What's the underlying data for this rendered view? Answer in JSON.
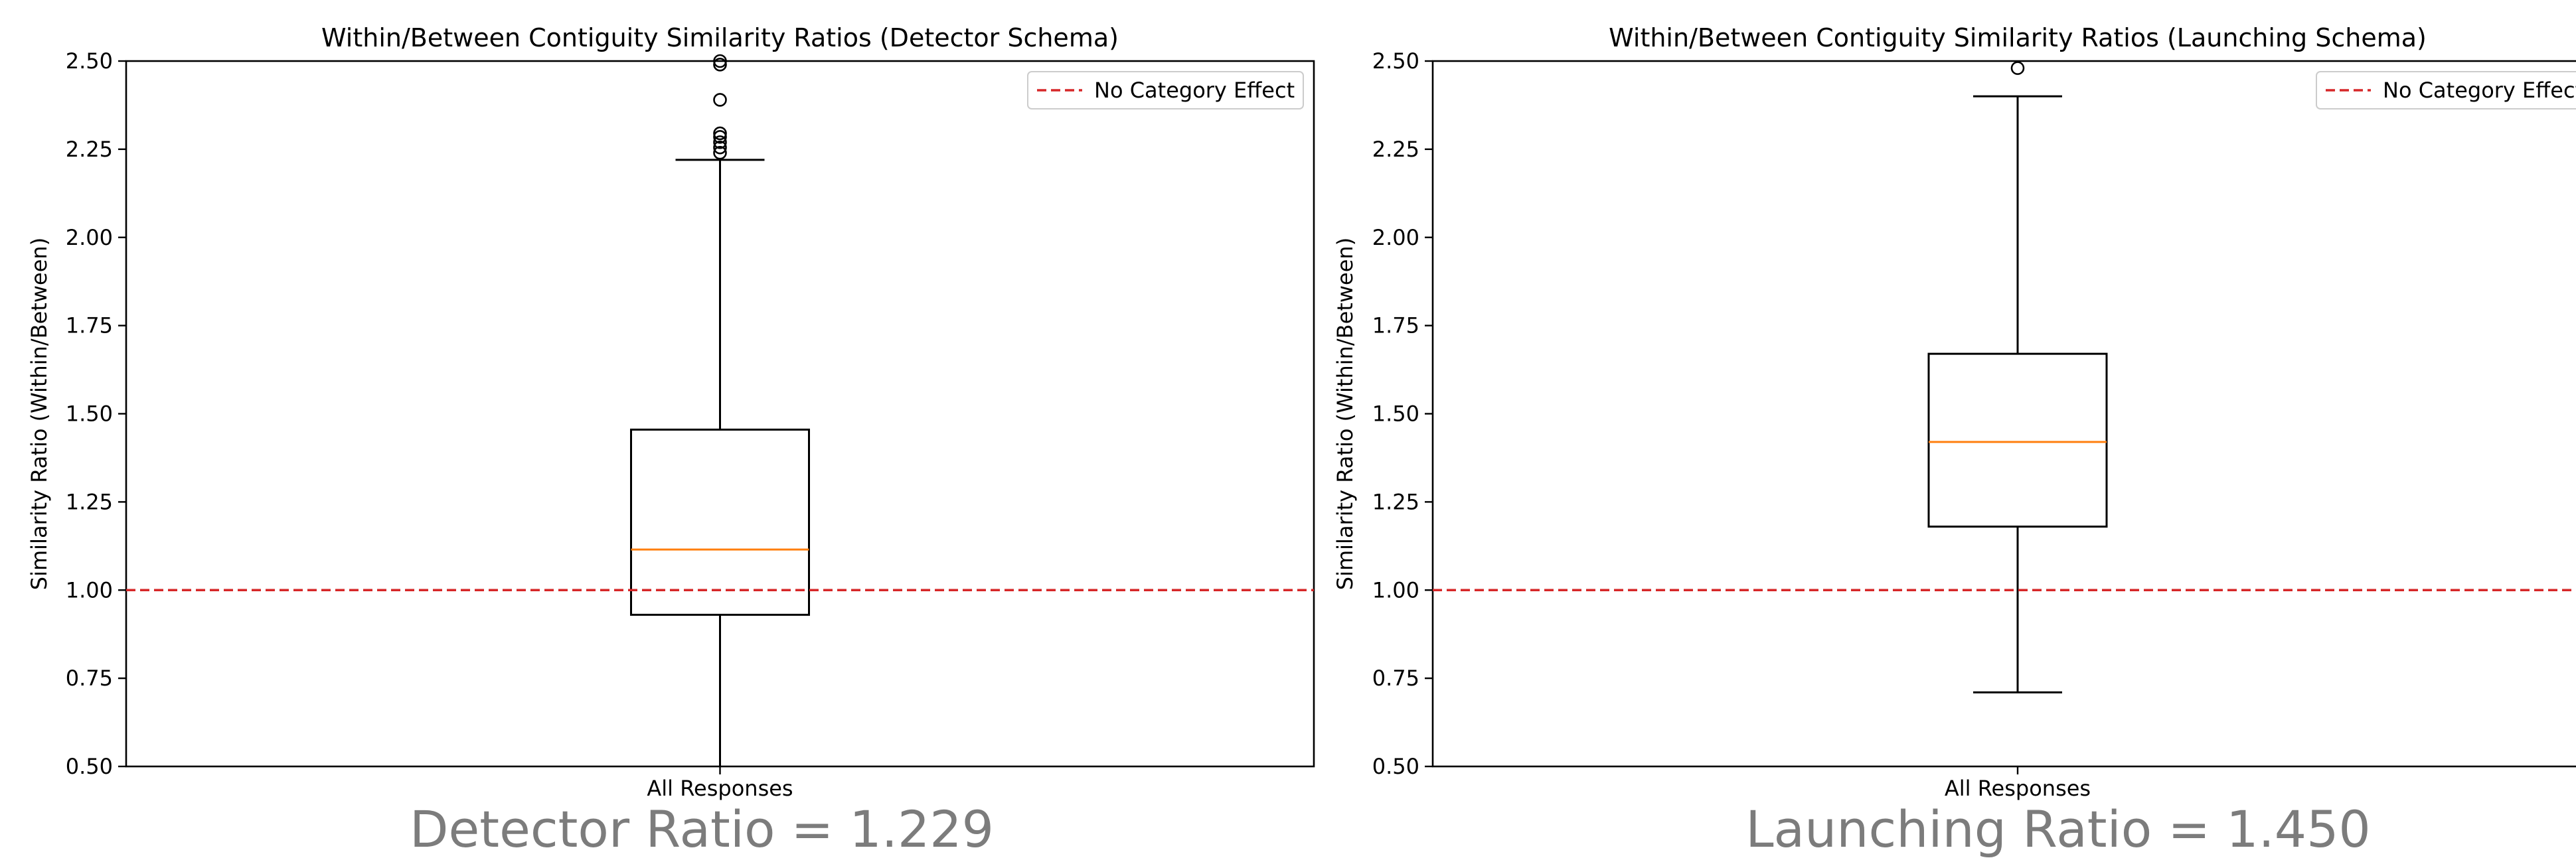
{
  "chart_data": [
    {
      "type": "box",
      "title": "Within/Between Contiguity Similarity Ratios (Detector Schema)",
      "xlabel": "",
      "ylabel": "Similarity Ratio (Within/Between)",
      "categories": [
        "All Responses"
      ],
      "ylim": [
        0.5,
        2.5
      ],
      "yticks": [
        "0.50",
        "0.75",
        "1.00",
        "1.25",
        "1.50",
        "1.75",
        "2.00",
        "2.25",
        "2.50"
      ],
      "box": {
        "whisker_low": 0.5,
        "q1": 0.93,
        "median": 1.115,
        "q3": 1.455,
        "whisker_high": 2.22
      },
      "outliers": [
        2.24,
        2.255,
        2.27,
        2.285,
        2.295,
        2.39,
        2.49,
        2.5
      ],
      "reference_line": {
        "y": 1.0,
        "label": "No Category Effect",
        "color": "#d62728",
        "style": "dashed"
      },
      "legend_position": "upper right",
      "grid": false,
      "colors": {
        "box": "#000000",
        "median": "#ff7f0e",
        "reference": "#d62728"
      }
    },
    {
      "type": "box",
      "title": "Within/Between Contiguity Similarity Ratios (Launching Schema)",
      "xlabel": "",
      "ylabel": "Similarity Ratio (Within/Between)",
      "categories": [
        "All Responses"
      ],
      "ylim": [
        0.5,
        2.5
      ],
      "yticks": [
        "0.50",
        "0.75",
        "1.00",
        "1.25",
        "1.50",
        "1.75",
        "2.00",
        "2.25",
        "2.50"
      ],
      "box": {
        "whisker_low": 0.71,
        "q1": 1.18,
        "median": 1.42,
        "q3": 1.67,
        "whisker_high": 2.4
      },
      "outliers": [
        2.48
      ],
      "reference_line": {
        "y": 1.0,
        "label": "No Category Effect",
        "color": "#d62728",
        "style": "dashed"
      },
      "legend_position": "upper right",
      "grid": false,
      "colors": {
        "box": "#000000",
        "median": "#ff7f0e",
        "reference": "#d62728"
      }
    }
  ],
  "captions": {
    "left": "Detector Ratio = 1.229",
    "right": "Launching Ratio = 1.450"
  }
}
